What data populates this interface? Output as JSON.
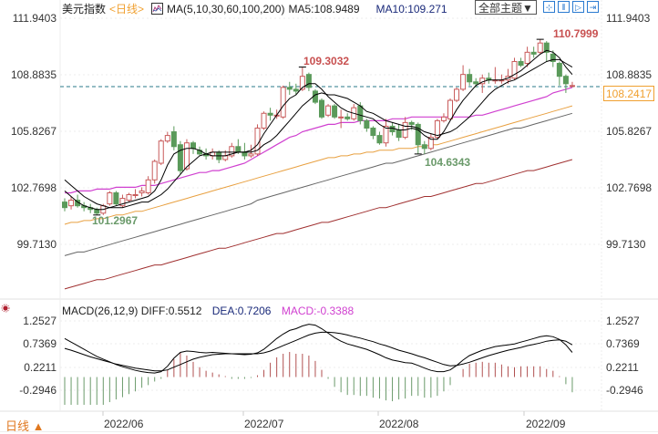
{
  "header": {
    "title": "美元指数",
    "period": "<日线>",
    "ma_label": "MA(5,10,30,60,100,200)",
    "ma5": "MA5:108.9489",
    "ma10": "MA10:109.271",
    "theme_button": "全部主题▼",
    "tool_buttons": [
      {
        "name": "crosshair-icon",
        "glyph": "⊹"
      },
      {
        "name": "zoom-in-icon",
        "glyph": "⫴"
      },
      {
        "name": "step-forward-icon",
        "glyph": "▷"
      },
      {
        "name": "jump-end-icon",
        "glyph": "⇥"
      }
    ]
  },
  "price_axis": {
    "ticks": [
      "111.9403",
      "108.8835",
      "105.8267",
      "102.7698",
      "99.7130"
    ],
    "current_price": "108.2417"
  },
  "annotations": {
    "high1": "109.3032",
    "high2": "110.7999",
    "low1": "101.2967",
    "low2": "104.6343"
  },
  "macd": {
    "label": "MACD(26,12,9)",
    "diff": "DIFF:0.5512",
    "dea": "DEA:0.7206",
    "macd": "MACD:-0.3388",
    "ticks": [
      "1.2527",
      "0.7369",
      "0.2211",
      "-0.2946"
    ]
  },
  "footer": {
    "period_switch": "日线 ▲",
    "dates": [
      "2022/06",
      "2022/07",
      "2022/08",
      "2022/09"
    ]
  },
  "colors": {
    "up": "#c85a5a",
    "down": "#5a9a5a",
    "ma5": "#000000",
    "ma10": "#000000",
    "ma30": "#d040d0",
    "ma60": "#e8a040",
    "ma100": "#666666",
    "ma200": "#a03030",
    "current_line": "#2a7a8a",
    "high_label": "#c85050",
    "low_label": "#6a9a6a"
  },
  "chart_data": {
    "type": "candlestick",
    "title": "美元指数 <日线>",
    "yaxis": {
      "min": 98.7,
      "max": 112.9,
      "ticks": [
        111.9403,
        108.8835,
        105.8267,
        102.7698,
        99.713
      ]
    },
    "current_price": 108.2417,
    "x_ticks": [
      "2022/06",
      "2022/07",
      "2022/08",
      "2022/09"
    ],
    "candles": [
      [
        102.0,
        101.7,
        102.2,
        101.5
      ],
      [
        101.8,
        102.1,
        102.3,
        101.6
      ],
      [
        102.1,
        101.8,
        102.4,
        101.7
      ],
      [
        101.8,
        101.7,
        102.0,
        101.5
      ],
      [
        101.7,
        101.6,
        101.9,
        101.4
      ],
      [
        101.6,
        101.4,
        101.7,
        101.3
      ],
      [
        101.4,
        101.8,
        101.9,
        101.3
      ],
      [
        101.9,
        102.5,
        102.6,
        101.8
      ],
      [
        102.5,
        101.9,
        102.6,
        101.8
      ],
      [
        101.8,
        102.2,
        102.4,
        101.7
      ],
      [
        102.1,
        102.4,
        102.5,
        102.0
      ],
      [
        102.4,
        102.4,
        102.7,
        102.2
      ],
      [
        102.5,
        102.6,
        102.8,
        102.3
      ],
      [
        102.5,
        103.2,
        103.4,
        102.4
      ],
      [
        103.2,
        104.2,
        104.3,
        103.0
      ],
      [
        104.1,
        105.3,
        105.4,
        104.0
      ],
      [
        105.3,
        105.6,
        105.8,
        105.2
      ],
      [
        105.8,
        105.0,
        106.1,
        104.8
      ],
      [
        105.1,
        103.7,
        105.3,
        103.5
      ],
      [
        103.8,
        105.2,
        105.4,
        103.7
      ],
      [
        105.2,
        104.9,
        105.3,
        104.6
      ],
      [
        104.8,
        104.6,
        105.0,
        104.5
      ],
      [
        104.6,
        104.5,
        104.9,
        104.3
      ],
      [
        104.5,
        104.7,
        104.9,
        104.3
      ],
      [
        104.7,
        104.3,
        104.8,
        104.1
      ],
      [
        104.3,
        104.5,
        104.8,
        104.2
      ],
      [
        104.5,
        105.0,
        105.2,
        104.4
      ],
      [
        105.0,
        104.7,
        105.4,
        104.6
      ],
      [
        104.7,
        104.5,
        105.2,
        104.3
      ],
      [
        104.5,
        104.6,
        105.1,
        104.4
      ],
      [
        104.6,
        106.0,
        106.2,
        104.5
      ],
      [
        106.0,
        106.8,
        106.9,
        105.9
      ],
      [
        106.8,
        106.7,
        107.1,
        106.4
      ],
      [
        106.7,
        106.7,
        107.0,
        106.5
      ],
      [
        106.6,
        108.2,
        108.3,
        106.5
      ],
      [
        108.2,
        108.1,
        108.5,
        107.8
      ],
      [
        108.1,
        108.0,
        108.4,
        107.8
      ],
      [
        108.1,
        108.8,
        109.3,
        108.0
      ],
      [
        108.9,
        108.2,
        109.0,
        108.0
      ],
      [
        108.0,
        107.4,
        108.1,
        107.3
      ],
      [
        107.5,
        106.6,
        107.6,
        106.5
      ],
      [
        106.7,
        107.2,
        107.3,
        106.6
      ],
      [
        107.2,
        106.6,
        107.3,
        106.5
      ],
      [
        106.6,
        106.6,
        107.0,
        106.0
      ],
      [
        106.6,
        106.5,
        106.8,
        106.4
      ],
      [
        106.5,
        107.1,
        107.3,
        106.4
      ],
      [
        107.2,
        106.4,
        107.4,
        106.2
      ],
      [
        106.4,
        106.0,
        106.5,
        105.8
      ],
      [
        106.0,
        105.6,
        106.1,
        105.4
      ],
      [
        105.6,
        105.2,
        105.8,
        105.1
      ],
      [
        105.2,
        106.1,
        106.5,
        105.0
      ],
      [
        106.1,
        105.8,
        106.3,
        105.6
      ],
      [
        105.9,
        105.5,
        106.2,
        105.3
      ],
      [
        105.5,
        106.3,
        106.6,
        105.4
      ],
      [
        106.3,
        106.2,
        106.4,
        105.9
      ],
      [
        106.2,
        105.1,
        106.3,
        104.6
      ],
      [
        105.1,
        104.9,
        105.3,
        104.6
      ],
      [
        104.9,
        105.5,
        105.7,
        104.8
      ],
      [
        105.5,
        106.4,
        106.5,
        105.4
      ],
      [
        106.4,
        106.6,
        106.8,
        106.3
      ],
      [
        106.5,
        107.5,
        107.6,
        106.4
      ],
      [
        107.5,
        108.1,
        108.2,
        107.4
      ],
      [
        108.1,
        108.9,
        109.4,
        108.0
      ],
      [
        108.9,
        108.5,
        109.2,
        108.3
      ],
      [
        108.5,
        108.4,
        108.7,
        108.2
      ],
      [
        108.4,
        108.7,
        108.9,
        107.9
      ],
      [
        108.7,
        108.6,
        109.0,
        108.4
      ],
      [
        108.6,
        108.6,
        109.3,
        108.4
      ],
      [
        108.6,
        108.6,
        108.9,
        108.4
      ],
      [
        108.6,
        108.8,
        109.2,
        108.4
      ],
      [
        108.7,
        109.6,
        109.8,
        108.6
      ],
      [
        109.6,
        109.4,
        109.8,
        109.3
      ],
      [
        109.5,
        110.1,
        110.4,
        109.3
      ],
      [
        110.1,
        110.0,
        110.4,
        109.8
      ],
      [
        110.1,
        110.6,
        110.8,
        110.0
      ],
      [
        110.6,
        110.1,
        110.7,
        109.6
      ],
      [
        110.0,
        109.6,
        110.2,
        109.3
      ],
      [
        109.5,
        108.8,
        109.6,
        108.3
      ],
      [
        108.8,
        108.4,
        108.9,
        107.9
      ],
      [
        108.3,
        108.3,
        108.5,
        108.2
      ]
    ],
    "ma5": [
      102.6,
      102.3,
      102.0,
      101.8,
      101.7,
      101.6,
      101.6,
      101.7,
      101.8,
      101.9,
      102.0,
      102.1,
      102.2,
      102.3,
      102.6,
      103.2,
      104.0,
      104.6,
      104.8,
      104.9,
      104.9,
      104.8,
      104.6,
      104.5,
      104.5,
      104.5,
      104.6,
      104.7,
      104.7,
      104.8,
      105.1,
      105.7,
      106.2,
      106.7,
      107.2,
      107.6,
      107.8,
      108.2,
      108.4,
      108.4,
      108.1,
      107.7,
      107.4,
      107.1,
      106.9,
      106.8,
      106.7,
      106.6,
      106.5,
      106.2,
      106.0,
      106.0,
      105.9,
      105.9,
      106.0,
      105.9,
      105.6,
      105.4,
      105.4,
      105.8,
      106.4,
      107.0,
      107.5,
      107.9,
      108.3,
      108.5,
      108.6,
      108.6,
      108.6,
      108.7,
      108.9,
      109.1,
      109.4,
      109.7,
      110.0,
      110.2,
      110.1,
      109.8,
      109.3,
      108.9
    ],
    "ma10": [
      103.2,
      102.9,
      102.6,
      102.3,
      102.1,
      101.9,
      101.8,
      101.7,
      101.7,
      101.7,
      101.8,
      101.9,
      102.0,
      102.0,
      102.2,
      102.4,
      102.7,
      103.1,
      103.5,
      103.9,
      104.2,
      104.5,
      104.6,
      104.7,
      104.7,
      104.7,
      104.7,
      104.7,
      104.7,
      104.7,
      104.8,
      105.1,
      105.3,
      105.6,
      106.0,
      106.4,
      106.8,
      107.2,
      107.5,
      107.8,
      107.9,
      107.8,
      107.8,
      107.7,
      107.6,
      107.4,
      107.2,
      106.9,
      106.8,
      106.6,
      106.4,
      106.3,
      106.2,
      106.1,
      106.1,
      106.0,
      105.8,
      105.7,
      105.6,
      105.7,
      105.8,
      106.0,
      106.3,
      106.6,
      107.0,
      107.4,
      107.8,
      108.1,
      108.3,
      108.5,
      108.6,
      108.8,
      109.0,
      109.2,
      109.4,
      109.6,
      109.7,
      109.7,
      109.5,
      109.3
    ],
    "ma30": [
      102.5,
      102.5,
      102.6,
      102.6,
      102.6,
      102.7,
      102.7,
      102.7,
      102.8,
      102.8,
      102.8,
      102.8,
      102.9,
      102.9,
      102.9,
      103.0,
      103.1,
      103.2,
      103.3,
      103.4,
      103.5,
      103.6,
      103.6,
      103.7,
      103.7,
      103.8,
      103.9,
      104.0,
      104.1,
      104.3,
      104.5,
      104.7,
      104.9,
      105.1,
      105.3,
      105.5,
      105.6,
      105.8,
      105.9,
      106.0,
      106.1,
      106.2,
      106.2,
      106.3,
      106.3,
      106.3,
      106.4,
      106.4,
      106.4,
      106.4,
      106.4,
      106.5,
      106.5,
      106.5,
      106.6,
      106.6,
      106.6,
      106.6,
      106.6,
      106.6,
      106.6,
      106.6,
      106.6,
      106.6,
      106.7,
      106.7,
      106.8,
      106.9,
      107.0,
      107.1,
      107.2,
      107.3,
      107.4,
      107.5,
      107.6,
      107.7,
      107.9,
      108.0,
      108.1,
      108.2
    ],
    "ma60": [
      100.8,
      100.9,
      100.9,
      101.0,
      101.0,
      101.1,
      101.1,
      101.2,
      101.3,
      101.3,
      101.4,
      101.5,
      101.5,
      101.6,
      101.7,
      101.8,
      101.9,
      102.0,
      102.1,
      102.2,
      102.3,
      102.4,
      102.5,
      102.6,
      102.7,
      102.8,
      102.9,
      103.0,
      103.1,
      103.2,
      103.3,
      103.4,
      103.5,
      103.6,
      103.7,
      103.8,
      103.9,
      104.0,
      104.1,
      104.2,
      104.3,
      104.4,
      104.4,
      104.5,
      104.5,
      104.6,
      104.6,
      104.7,
      104.7,
      104.8,
      104.8,
      104.8,
      104.9,
      104.9,
      104.9,
      105.0,
      105.0,
      105.1,
      105.1,
      105.2,
      105.3,
      105.4,
      105.5,
      105.6,
      105.7,
      105.8,
      105.9,
      106.0,
      106.1,
      106.2,
      106.3,
      106.4,
      106.5,
      106.6,
      106.7,
      106.8,
      106.9,
      107.0,
      107.1,
      107.2
    ],
    "ma100": [
      99.1,
      99.2,
      99.3,
      99.3,
      99.4,
      99.5,
      99.6,
      99.7,
      99.8,
      99.9,
      100.0,
      100.1,
      100.2,
      100.3,
      100.4,
      100.5,
      100.6,
      100.7,
      100.8,
      100.9,
      101.0,
      101.1,
      101.2,
      101.3,
      101.4,
      101.5,
      101.6,
      101.7,
      101.8,
      101.9,
      102.1,
      102.2,
      102.3,
      102.4,
      102.5,
      102.6,
      102.7,
      102.8,
      102.9,
      103.0,
      103.1,
      103.2,
      103.3,
      103.4,
      103.5,
      103.6,
      103.7,
      103.8,
      103.9,
      104.0,
      104.1,
      104.1,
      104.2,
      104.3,
      104.4,
      104.5,
      104.6,
      104.7,
      104.8,
      104.9,
      105.0,
      105.1,
      105.2,
      105.3,
      105.4,
      105.5,
      105.6,
      105.7,
      105.8,
      105.9,
      106.0,
      106.0,
      106.1,
      106.2,
      106.3,
      106.4,
      106.5,
      106.6,
      106.7,
      106.8
    ],
    "ma200": [
      97.3,
      97.4,
      97.5,
      97.6,
      97.7,
      97.8,
      97.8,
      97.9,
      98.0,
      98.1,
      98.2,
      98.3,
      98.4,
      98.5,
      98.6,
      98.6,
      98.7,
      98.8,
      98.9,
      99.0,
      99.1,
      99.2,
      99.3,
      99.4,
      99.5,
      99.5,
      99.6,
      99.7,
      99.8,
      99.9,
      100.0,
      100.1,
      100.2,
      100.3,
      100.3,
      100.4,
      100.5,
      100.6,
      100.7,
      100.8,
      100.9,
      100.9,
      101.0,
      101.1,
      101.2,
      101.3,
      101.4,
      101.5,
      101.6,
      101.7,
      101.7,
      101.8,
      101.9,
      102.0,
      102.1,
      102.2,
      102.3,
      102.3,
      102.4,
      102.5,
      102.6,
      102.7,
      102.8,
      102.9,
      103.0,
      103.0,
      103.1,
      103.2,
      103.3,
      103.4,
      103.5,
      103.6,
      103.7,
      103.7,
      103.8,
      103.9,
      104.0,
      104.1,
      104.2,
      104.3
    ],
    "macd_panel": {
      "yaxis": {
        "min": -0.72,
        "max": 1.7,
        "ticks": [
          1.2527,
          0.7369,
          0.2211,
          -0.2946
        ]
      },
      "diff": [
        0.86,
        0.78,
        0.7,
        0.62,
        0.54,
        0.46,
        0.4,
        0.34,
        0.28,
        0.23,
        0.19,
        0.15,
        0.12,
        0.1,
        0.09,
        0.12,
        0.24,
        0.42,
        0.55,
        0.58,
        0.57,
        0.55,
        0.54,
        0.55,
        0.54,
        0.53,
        0.52,
        0.51,
        0.5,
        0.51,
        0.54,
        0.62,
        0.74,
        0.86,
        0.96,
        1.04,
        1.08,
        1.14,
        1.18,
        1.16,
        1.08,
        0.98,
        0.88,
        0.8,
        0.74,
        0.7,
        0.66,
        0.62,
        0.56,
        0.5,
        0.43,
        0.38,
        0.35,
        0.32,
        0.31,
        0.26,
        0.2,
        0.15,
        0.12,
        0.12,
        0.16,
        0.26,
        0.38,
        0.48,
        0.54,
        0.6,
        0.64,
        0.68,
        0.7,
        0.72,
        0.74,
        0.78,
        0.82,
        0.86,
        0.9,
        0.92,
        0.9,
        0.84,
        0.72,
        0.55
      ],
      "dea": [
        0.64,
        0.6,
        0.55,
        0.5,
        0.45,
        0.41,
        0.37,
        0.33,
        0.29,
        0.26,
        0.23,
        0.2,
        0.18,
        0.16,
        0.14,
        0.14,
        0.16,
        0.22,
        0.28,
        0.34,
        0.4,
        0.44,
        0.47,
        0.5,
        0.51,
        0.52,
        0.52,
        0.52,
        0.52,
        0.52,
        0.52,
        0.54,
        0.58,
        0.64,
        0.7,
        0.76,
        0.82,
        0.88,
        0.94,
        0.98,
        1.0,
        1.0,
        0.99,
        0.97,
        0.94,
        0.9,
        0.87,
        0.83,
        0.79,
        0.74,
        0.7,
        0.65,
        0.6,
        0.56,
        0.52,
        0.47,
        0.43,
        0.38,
        0.33,
        0.28,
        0.25,
        0.26,
        0.29,
        0.33,
        0.38,
        0.43,
        0.48,
        0.52,
        0.56,
        0.6,
        0.63,
        0.66,
        0.7,
        0.73,
        0.76,
        0.8,
        0.82,
        0.83,
        0.8,
        0.72
      ],
      "macd_hist": [
        -0.62,
        -0.62,
        -0.62,
        -0.62,
        -0.62,
        -0.62,
        -0.62,
        -0.56,
        -0.5,
        -0.45,
        -0.38,
        -0.32,
        -0.24,
        -0.18,
        -0.1,
        -0.04,
        0.16,
        0.4,
        0.54,
        0.48,
        0.34,
        0.22,
        0.14,
        0.1,
        0.06,
        0.02,
        -0.04,
        -0.04,
        -0.04,
        -0.02,
        0.04,
        0.16,
        0.32,
        0.44,
        0.52,
        0.56,
        0.52,
        0.52,
        0.48,
        0.36,
        0.16,
        -0.04,
        -0.22,
        -0.34,
        -0.4,
        -0.4,
        -0.42,
        -0.42,
        -0.46,
        -0.48,
        -0.52,
        -0.54,
        -0.5,
        -0.48,
        -0.42,
        -0.42,
        -0.46,
        -0.46,
        -0.42,
        -0.32,
        -0.18,
        0.0,
        0.18,
        0.3,
        0.32,
        0.34,
        0.32,
        0.32,
        0.28,
        0.24,
        0.22,
        0.24,
        0.24,
        0.24,
        0.24,
        0.18,
        0.14,
        0.02,
        -0.16,
        -0.34
      ]
    },
    "annotations": [
      {
        "label": "109.3032",
        "type": "high",
        "index": 37
      },
      {
        "label": "110.7999",
        "type": "high",
        "index": 74
      },
      {
        "label": "101.2967",
        "type": "low",
        "index": 5
      },
      {
        "label": "104.6343",
        "type": "low",
        "index": 55
      }
    ]
  }
}
